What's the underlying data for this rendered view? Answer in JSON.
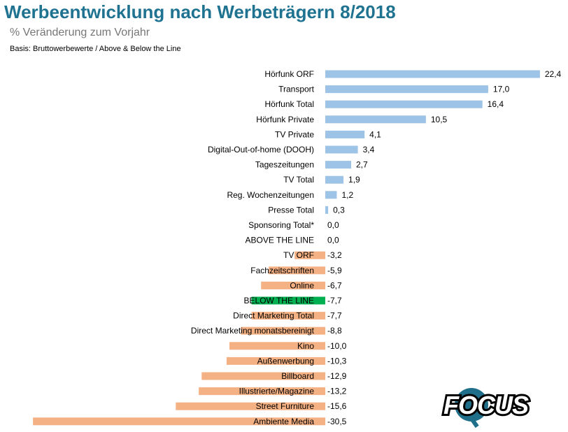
{
  "header": {
    "title": "Werbeentwicklung nach Werbeträgern 8/2018",
    "subtitle": "% Veränderung zum Vorjahr",
    "basis": "Basis: Bruttowerbewerte / Above & Below the Line"
  },
  "logo": {
    "text": "FOCUS"
  },
  "colors": {
    "positive": "#9dc3e6",
    "negative": "#f4b183",
    "highlight": "#00b050",
    "title": "#1f7391"
  },
  "chart_data": {
    "type": "bar",
    "orientation": "horizontal",
    "title": "Werbeentwicklung nach Werbeträgern 8/2018",
    "subtitle": "% Veränderung zum Vorjahr",
    "xlabel": "",
    "ylabel": "",
    "xlim": [
      -30.5,
      22.4
    ],
    "grid": false,
    "categories": [
      "Hörfunk ORF",
      "Transport",
      "Hörfunk Total",
      "Hörfunk Private",
      "TV Private",
      "Digital-Out-of-home (DOOH)",
      "Tageszeitungen",
      "TV Total",
      "Reg. Wochenzeitungen",
      "Presse Total",
      "Sponsoring Total*",
      "ABOVE THE LINE",
      "TV ORF",
      "Fachzeitschriften",
      "Online",
      "BELOW THE LINE",
      "Direct Marketing Total",
      "Direct Marketing monatsbereinigt",
      "Kino",
      "Außenwerbung",
      "Billboard",
      "Illustrierte/Magazine",
      "Street Furniture",
      "Ambiente Media"
    ],
    "values": [
      22.4,
      17.0,
      16.4,
      10.5,
      4.1,
      3.4,
      2.7,
      1.9,
      1.2,
      0.3,
      0.0,
      0.0,
      -3.2,
      -5.9,
      -6.7,
      -7.7,
      -7.7,
      -8.8,
      -10.0,
      -10.3,
      -12.9,
      -13.2,
      -15.6,
      -30.5
    ],
    "value_labels": [
      "22,4",
      "17,0",
      "16,4",
      "10,5",
      "4,1",
      "3,4",
      "2,7",
      "1,9",
      "1,2",
      "0,3",
      "0,0",
      "0,0",
      "-3,2",
      "-5,9",
      "-6,7",
      "-7,7",
      "-7,7",
      "-8,8",
      "-10,0",
      "-10,3",
      "-12,9",
      "-13,2",
      "-15,6",
      "-30,5"
    ],
    "highlighted": [
      "BELOW THE LINE"
    ]
  }
}
